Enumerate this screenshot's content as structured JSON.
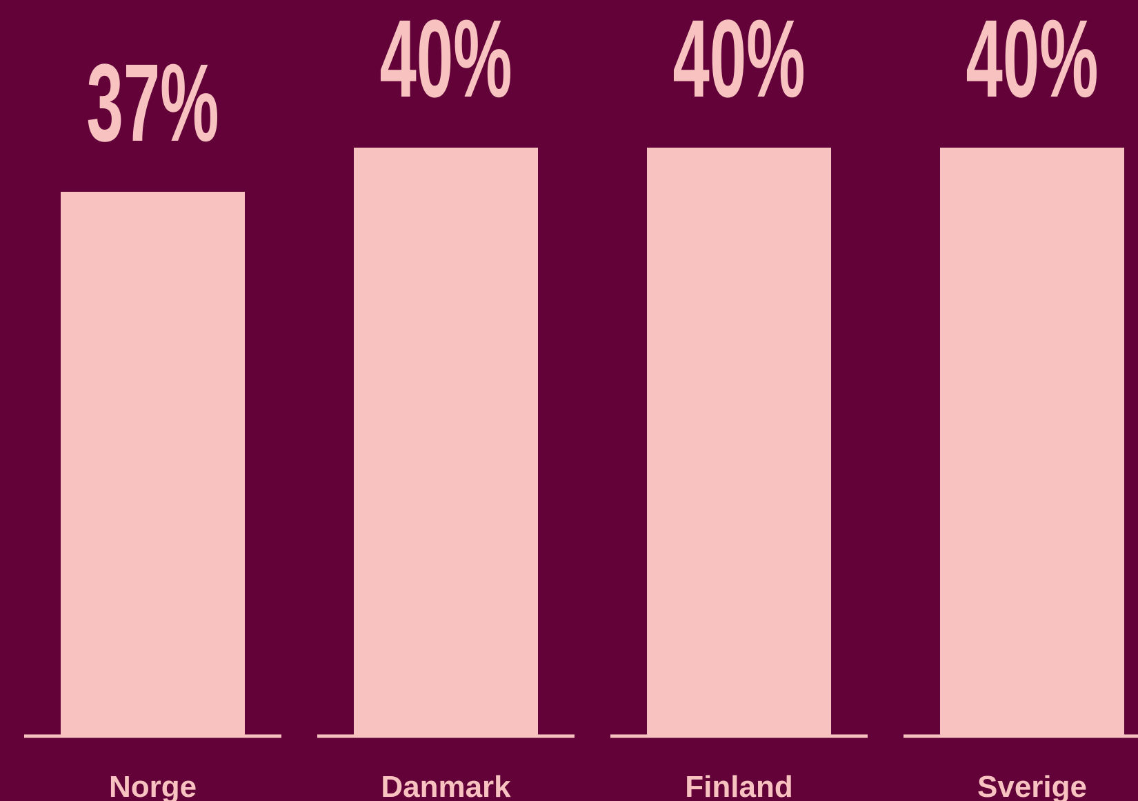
{
  "chart_data": {
    "type": "bar",
    "categories": [
      "Norge",
      "Danmark",
      "Finland",
      "Sverige"
    ],
    "values": [
      37,
      40,
      40,
      40
    ],
    "value_labels": [
      "37%",
      "40%",
      "40%",
      "40%"
    ],
    "color": "#f7c2bf",
    "background": "#620238"
  }
}
